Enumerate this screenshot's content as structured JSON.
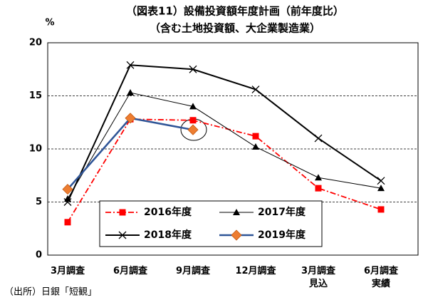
{
  "chart_data": {
    "type": "line",
    "title": "（図表11）設備投資額年度計画（前年度比）",
    "subtitle": "（含む土地投資額、大企業製造業）",
    "y_label": "%",
    "source": "（出所）日銀「短観」",
    "categories": [
      "3月調査",
      "6月調査",
      "9月調査",
      "12月調査",
      "3月調査\n見込",
      "6月調査\n実績"
    ],
    "series": [
      {
        "name": "2016年度",
        "color": "#ff0000",
        "marker": "square",
        "linestyle": "dashdot",
        "linewidth": 1.8,
        "values": [
          3.1,
          12.8,
          12.7,
          11.2,
          6.3,
          4.3
        ]
      },
      {
        "name": "2017年度",
        "color": "#000000",
        "marker": "triangle",
        "linestyle": "solid",
        "linewidth": 1,
        "values": [
          5.3,
          15.3,
          14.0,
          10.2,
          7.3,
          6.3
        ]
      },
      {
        "name": "2018年度",
        "color": "#000000",
        "marker": "x",
        "linestyle": "solid",
        "linewidth": 2,
        "values": [
          5.0,
          17.9,
          17.5,
          15.6,
          11.0,
          7.0
        ]
      },
      {
        "name": "2019年度",
        "color": "#2f5597",
        "marker": "diamond",
        "marker_color": "#ed7d31",
        "linestyle": "solid",
        "linewidth": 2.5,
        "values": [
          6.2,
          12.9,
          11.8,
          null,
          null,
          null
        ]
      }
    ],
    "ylim": [
      0,
      20
    ],
    "yticks": [
      0,
      5,
      10,
      15,
      20
    ],
    "grid": true,
    "legend": "lower center"
  }
}
